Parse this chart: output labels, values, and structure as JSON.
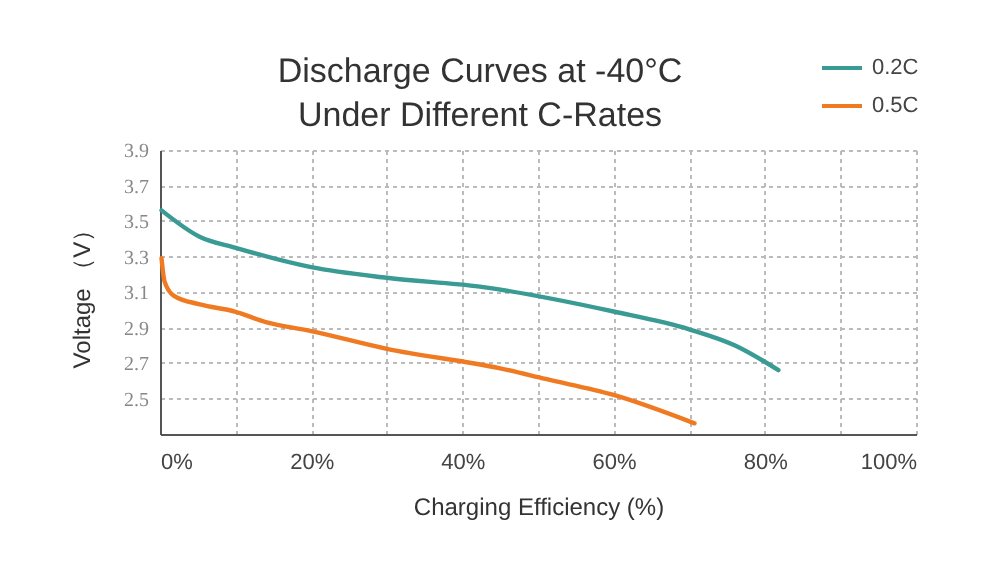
{
  "chart_data": {
    "type": "line",
    "title": "Discharge Curves at -40°C\nUnder Different C-Rates",
    "xlabel": "Charging Efficiency (%)",
    "ylabel": "Voltage （V）",
    "xlim": [
      0,
      100
    ],
    "xticks": [
      {
        "value": 0,
        "label": "0%"
      },
      {
        "value": 10,
        "label": null
      },
      {
        "value": 20,
        "label": "20%"
      },
      {
        "value": 30,
        "label": null
      },
      {
        "value": 40,
        "label": "40%"
      },
      {
        "value": 50,
        "label": null
      },
      {
        "value": 60,
        "label": "60%"
      },
      {
        "value": 70,
        "label": null
      },
      {
        "value": 80,
        "label": "80%"
      },
      {
        "value": 90,
        "label": null
      },
      {
        "value": 100,
        "label": "100%"
      }
    ],
    "ylim": [
      2.3,
      3.9
    ],
    "yticks": [
      2.5,
      2.7,
      2.9,
      3.1,
      3.3,
      3.5,
      3.7,
      3.9
    ],
    "grid": true,
    "legend": "top right",
    "marker": "none",
    "line_style": "solid",
    "series": [
      {
        "name": "0.2C",
        "color": "#3a9a94",
        "x": [
          0.2,
          5.3,
          9.9,
          20,
          30,
          42.3,
          60,
          70,
          76,
          81.8
        ],
        "values": [
          3.56,
          3.41,
          3.35,
          3.24,
          3.18,
          3.13,
          2.99,
          2.89,
          2.8,
          2.66
        ]
      },
      {
        "name": "0.5C",
        "color": "#f07a22",
        "x": [
          0.2,
          0.6,
          1.8,
          5.3,
          9.9,
          14,
          20,
          30,
          45,
          51,
          60,
          70.7
        ],
        "values": [
          3.29,
          3.16,
          3.08,
          3.03,
          2.99,
          2.93,
          2.88,
          2.78,
          2.67,
          2.61,
          2.52,
          2.36
        ]
      }
    ]
  }
}
